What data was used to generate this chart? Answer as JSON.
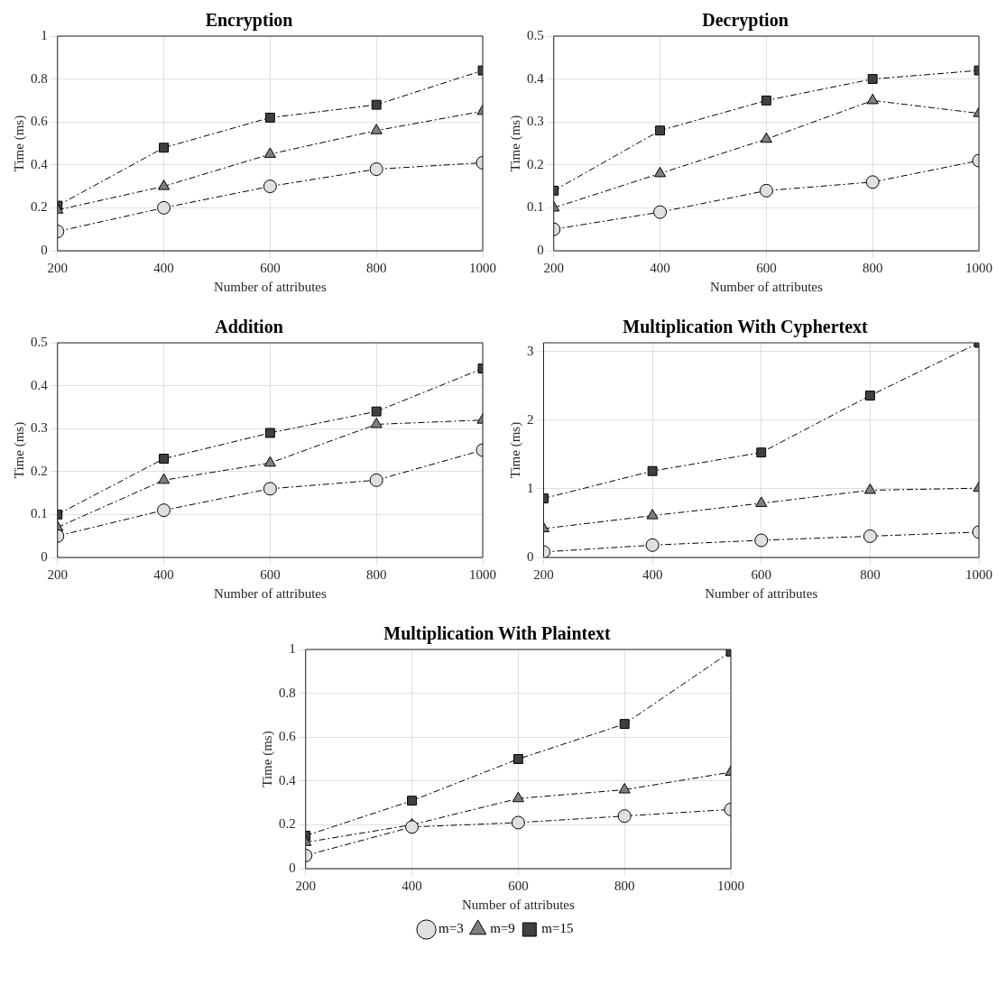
{
  "chart_data": [
    {
      "type": "line",
      "title": "Encryption",
      "xlabel": "Number of attributes",
      "ylabel": "Time (ms)",
      "x": [
        200,
        400,
        600,
        800,
        1000
      ],
      "xlim": [
        200,
        1000
      ],
      "xticks": [
        200,
        400,
        600,
        800,
        1000
      ],
      "ylim": [
        0,
        1
      ],
      "yticks": [
        0,
        0.2,
        0.4,
        0.6,
        0.8,
        1
      ],
      "grid": true,
      "legend": false,
      "line_style": "dashed",
      "series": [
        {
          "color": "#e0e0e0",
          "marker": "circle",
          "values": [
            0.09,
            0.2,
            0.3,
            0.38,
            0.41
          ]
        },
        {
          "color": "#808080",
          "marker": "triangle",
          "values": [
            0.19,
            0.3,
            0.45,
            0.56,
            0.65
          ]
        },
        {
          "color": "#404040",
          "marker": "square",
          "values": [
            0.21,
            0.48,
            0.62,
            0.68,
            0.84
          ]
        }
      ]
    },
    {
      "type": "line",
      "title": "Decryption",
      "xlabel": "Number of attributes",
      "ylabel": "Time (ms)",
      "x": [
        200,
        400,
        600,
        800,
        1000
      ],
      "xlim": [
        200,
        1000
      ],
      "xticks": [
        200,
        400,
        600,
        800,
        1000
      ],
      "ylim": [
        0,
        0.5
      ],
      "yticks": [
        0,
        0.1,
        0.2,
        0.3,
        0.4,
        0.5
      ],
      "grid": true,
      "legend": false,
      "line_style": "dashed",
      "series": [
        {
          "color": "#e0e0e0",
          "marker": "circle",
          "values": [
            0.05,
            0.09,
            0.14,
            0.16,
            0.21
          ]
        },
        {
          "color": "#808080",
          "marker": "triangle",
          "values": [
            0.1,
            0.18,
            0.26,
            0.35,
            0.32
          ]
        },
        {
          "color": "#404040",
          "marker": "square",
          "values": [
            0.14,
            0.28,
            0.35,
            0.4,
            0.42
          ]
        }
      ]
    },
    {
      "type": "line",
      "title": "Addition",
      "xlabel": "Number of attributes",
      "ylabel": "Time (ms)",
      "x": [
        200,
        400,
        600,
        800,
        1000
      ],
      "xlim": [
        200,
        1000
      ],
      "xticks": [
        200,
        400,
        600,
        800,
        1000
      ],
      "ylim": [
        0,
        0.5
      ],
      "yticks": [
        0,
        0.1,
        0.2,
        0.3,
        0.4,
        0.5
      ],
      "grid": true,
      "legend": false,
      "line_style": "dashed",
      "series": [
        {
          "color": "#e0e0e0",
          "marker": "circle",
          "values": [
            0.05,
            0.11,
            0.16,
            0.18,
            0.25
          ]
        },
        {
          "color": "#808080",
          "marker": "triangle",
          "values": [
            0.07,
            0.18,
            0.22,
            0.31,
            0.32
          ]
        },
        {
          "color": "#404040",
          "marker": "square",
          "values": [
            0.1,
            0.23,
            0.29,
            0.34,
            0.44
          ]
        }
      ]
    },
    {
      "type": "line",
      "title": "Multiplication With Cyphertext",
      "xlabel": "Number of attributes",
      "ylabel": "Time (ms)",
      "x": [
        200,
        400,
        600,
        800,
        1000
      ],
      "xlim": [
        200,
        1000
      ],
      "xticks": [
        200,
        400,
        600,
        800,
        1000
      ],
      "ylim": [
        0,
        3.13
      ],
      "yticks": [
        0,
        1,
        2,
        3
      ],
      "grid": true,
      "legend": false,
      "line_style": "dashed",
      "series": [
        {
          "color": "#e0e0e0",
          "marker": "circle",
          "values": [
            0.08,
            0.18,
            0.25,
            0.31,
            0.37
          ]
        },
        {
          "color": "#808080",
          "marker": "triangle",
          "values": [
            0.42,
            0.61,
            0.79,
            0.98,
            1.01
          ]
        },
        {
          "color": "#404040",
          "marker": "square",
          "values": [
            0.86,
            1.26,
            1.53,
            2.36,
            3.13
          ]
        }
      ]
    },
    {
      "type": "line",
      "title": "Multiplication With Plaintext",
      "xlabel": "Number of attributes",
      "ylabel": "Time (ms)",
      "x": [
        200,
        400,
        600,
        800,
        1000
      ],
      "xlim": [
        200,
        1000
      ],
      "xticks": [
        200,
        400,
        600,
        800,
        1000
      ],
      "ylim": [
        0,
        1
      ],
      "yticks": [
        0,
        0.2,
        0.4,
        0.6,
        0.8,
        1
      ],
      "grid": true,
      "legend": "bottom",
      "line_style": "dashed",
      "series": [
        {
          "name": "m=3",
          "color": "#e0e0e0",
          "marker": "circle",
          "values": [
            0.06,
            0.19,
            0.21,
            0.24,
            0.27
          ]
        },
        {
          "name": "m=9",
          "color": "#808080",
          "marker": "triangle",
          "values": [
            0.12,
            0.2,
            0.32,
            0.36,
            0.44
          ]
        },
        {
          "name": "m=15",
          "color": "#404040",
          "marker": "square",
          "values": [
            0.15,
            0.31,
            0.5,
            0.66,
            0.99
          ]
        }
      ]
    }
  ]
}
